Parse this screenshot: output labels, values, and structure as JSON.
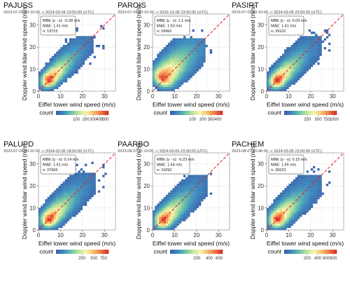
{
  "chart_data": [
    {
      "type": "heatmap",
      "title": "PAJUSS",
      "subtitle": "2023-07-09 00:10:00 -> 2024-03-04 23:50:00 (UTC)",
      "xlabel": "Eiffel tower wind speed (m/s)",
      "ylabel": "Doppler wind lidar wind speed (m/s)",
      "xlim": [
        0,
        35
      ],
      "ylim": [
        0,
        35
      ],
      "xticks": [
        0,
        10,
        20,
        30
      ],
      "yticks": [
        0,
        10,
        20,
        30
      ],
      "stats": [
        "MBE (y - x): -0.28 m/s",
        "MAE: 1.41 m/s",
        "n: 13715"
      ],
      "legend": {
        "title": "count",
        "ticks": [
          100,
          200,
          300,
          400,
          500
        ],
        "max": 560
      },
      "density": {
        "peak": [
          5,
          5.5
        ],
        "spread_along": 5.5,
        "spread_across": 1.25,
        "extent": 25,
        "scatter_to": 30
      },
      "grid": true,
      "reference_line": "y = x"
    },
    {
      "type": "heatmap",
      "title": "PAROIS",
      "subtitle": "2023-07-09 00:10:00 -> 2023-12-05 23:50:00 (UTC)",
      "xlabel": "Eiffel tower wind speed (m/s)",
      "ylabel": "Doppler wind lidar wind speed (m/s)",
      "xlim": [
        0,
        35
      ],
      "ylim": [
        0,
        35
      ],
      "xticks": [
        0,
        10,
        20,
        30
      ],
      "yticks": [
        0,
        10,
        20,
        30
      ],
      "stats": [
        "MBE (y - x): 1.1 m/s",
        "MAE: 1.93 m/s",
        "n: 18492"
      ],
      "legend": {
        "title": "count",
        "ticks": [
          100,
          200,
          300,
          400
        ],
        "max": 470
      },
      "density": {
        "peak": [
          5,
          6.5
        ],
        "spread_along": 6,
        "spread_across": 1.8,
        "extent": 24,
        "scatter_to": 28
      },
      "grid": true,
      "reference_line": "y = x"
    },
    {
      "type": "heatmap",
      "title": "PASIRT",
      "subtitle": "2023-07-09 00:10:00 -> 2024-03-05 23:50:00 (UTC)",
      "xlabel": "Eiffel tower wind speed (m/s)",
      "ylabel": "Doppler wind lidar wind speed (m/s)",
      "xlim": [
        0,
        35
      ],
      "ylim": [
        0,
        35
      ],
      "xticks": [
        0,
        10,
        20,
        30
      ],
      "yticks": [
        0,
        10,
        20,
        30
      ],
      "stats": [
        "MBE (y - x): 0.03 m/s",
        "MAE: 1.41 m/s",
        "n: 29102"
      ],
      "legend": {
        "title": "count",
        "ticks": [
          250,
          500,
          750,
          1000
        ],
        "max": 1100
      },
      "density": {
        "peak": [
          5,
          5.2
        ],
        "spread_along": 5.5,
        "spread_across": 1.3,
        "extent": 25,
        "scatter_to": 29
      },
      "grid": true,
      "reference_line": "y = x"
    },
    {
      "type": "heatmap",
      "title": "PALUPD",
      "subtitle": "2023-07-09 00:10:00 -> 2024-02-06 18:50:00 (UTC)",
      "xlabel": "Eiffel tower wind speed (m/s)",
      "ylabel": "Doppler wind lidar wind speed (m/s)",
      "xlim": [
        0,
        35
      ],
      "ylim": [
        0,
        35
      ],
      "xticks": [
        0,
        10,
        20,
        30
      ],
      "yticks": [
        0,
        10,
        20,
        30
      ],
      "stats": [
        "MBE (y - x): 0.14 m/s",
        "MAE: 1.61 m/s",
        "n: 27665"
      ],
      "legend": {
        "title": "count",
        "ticks": [
          250,
          500,
          750
        ],
        "max": 900
      },
      "density": {
        "peak": [
          5,
          5.2
        ],
        "spread_along": 5.5,
        "spread_across": 1.4,
        "extent": 26,
        "scatter_to": 31
      },
      "grid": true,
      "reference_line": "y = x"
    },
    {
      "type": "heatmap",
      "title": "PAARBO",
      "subtitle": "2023-08-07 11:10:00 -> 2024-03-05 23:50:00 (UTC)",
      "xlabel": "Eiffel tower wind speed (m/s)",
      "ylabel": "Doppler wind lidar wind speed (m/s)",
      "xlim": [
        0,
        35
      ],
      "ylim": [
        0,
        35
      ],
      "xticks": [
        0,
        10,
        20,
        30
      ],
      "yticks": [
        0,
        10,
        20,
        30
      ],
      "stats": [
        "MBE (y - x): -0.23 m/s",
        "MAE: 1.64 m/s",
        "n: 19292"
      ],
      "legend": {
        "title": "count",
        "ticks": [
          200,
          400,
          600
        ],
        "max": 680
      },
      "density": {
        "peak": [
          5,
          4.8
        ],
        "spread_along": 5.5,
        "spread_across": 1.4,
        "extent": 25,
        "scatter_to": 27
      },
      "grid": true,
      "reference_line": "y = x"
    },
    {
      "type": "heatmap",
      "title": "PACHEM",
      "subtitle": "2023-08-07 10:40:00 -> 2024-03-05 23:50:00 (UTC)",
      "xlabel": "Eiffel tower wind speed (m/s)",
      "ylabel": "Doppler wind lidar wind speed (m/s)",
      "xlim": [
        0,
        35
      ],
      "ylim": [
        0,
        35
      ],
      "xticks": [
        0,
        10,
        20,
        30
      ],
      "yticks": [
        0,
        10,
        20,
        30
      ],
      "stats": [
        "MBE (y - x): 0.15 m/s",
        "MAE: 1.65 m/s",
        "n: 26023"
      ],
      "legend": {
        "title": "count",
        "ticks": [
          200,
          400,
          600,
          800
        ],
        "max": 900
      },
      "density": {
        "peak": [
          5,
          5.2
        ],
        "spread_along": 5.5,
        "spread_across": 1.4,
        "extent": 25,
        "scatter_to": 29
      },
      "grid": true,
      "reference_line": "y = x"
    }
  ],
  "colors": {
    "colormap": [
      "#3b5fa8",
      "#3f8fc0",
      "#6cc3a8",
      "#bfe49a",
      "#f5f5b0",
      "#f9c06b",
      "#ef7a45",
      "#d7302b"
    ],
    "reference_line": "#e8202a",
    "grid": "#e6e6e6",
    "panel_border": "#888888"
  }
}
